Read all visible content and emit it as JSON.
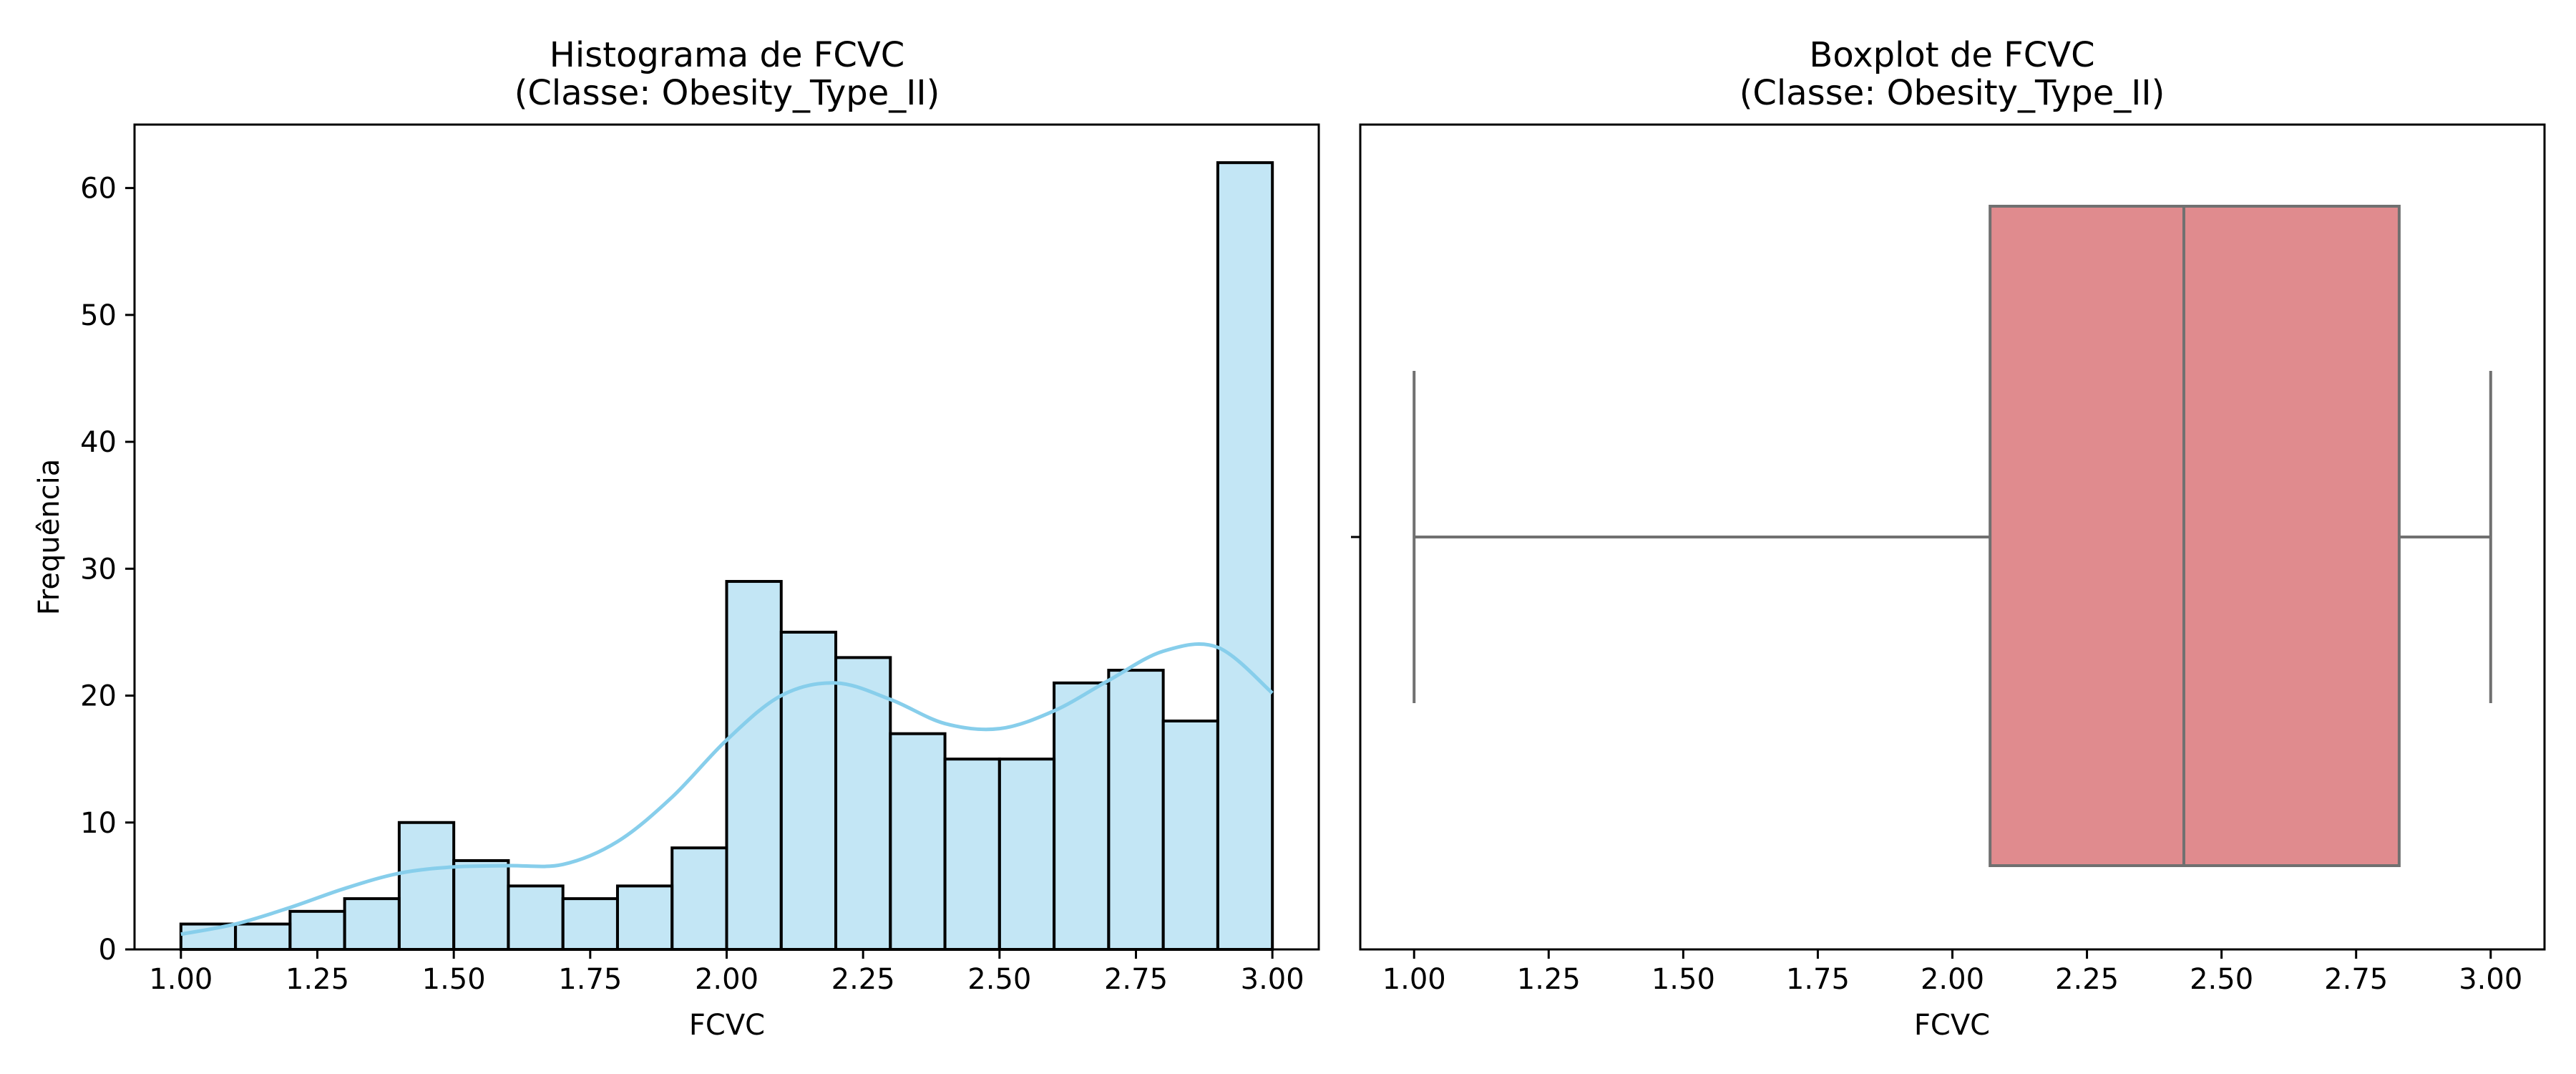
{
  "colors": {
    "hist_fill": "#87ceeb",
    "hist_fill_opacity": 0.5,
    "hist_edge": "#000000",
    "kde_line": "#87ceeb",
    "box_fill": "#e08b8e",
    "box_line": "#707070",
    "axes": "#000000",
    "background": "#ffffff"
  },
  "chart_data": [
    {
      "type": "bar",
      "subtype": "histogram_with_kde",
      "title_line1": "Histograma de FCVC",
      "title_line2": "(Classe: Obesity_Type_II)",
      "xlabel": "FCVC",
      "ylabel": "Frequência",
      "xlim": [
        0.915,
        3.085
      ],
      "ylim": [
        0,
        65
      ],
      "xticks": [
        1.0,
        1.25,
        1.5,
        1.75,
        2.0,
        2.25,
        2.5,
        2.75,
        3.0
      ],
      "xtick_labels": [
        "1.00",
        "1.25",
        "1.50",
        "1.75",
        "2.00",
        "2.25",
        "2.50",
        "2.75",
        "3.00"
      ],
      "yticks": [
        0,
        10,
        20,
        30,
        40,
        50,
        60
      ],
      "ytick_labels": [
        "0",
        "10",
        "20",
        "30",
        "40",
        "50",
        "60"
      ],
      "grid": false,
      "bin_edges": [
        1.0,
        1.1,
        1.2,
        1.3,
        1.4,
        1.5,
        1.6,
        1.7,
        1.8,
        1.9,
        2.0,
        2.1,
        2.2,
        2.3,
        2.4,
        2.5,
        2.6,
        2.7,
        2.8,
        2.9,
        3.0
      ],
      "counts": [
        2,
        2,
        3,
        4,
        10,
        7,
        5,
        4,
        5,
        8,
        29,
        25,
        23,
        17,
        15,
        15,
        21,
        22,
        18,
        62
      ],
      "kde": {
        "x": [
          1.0,
          1.1,
          1.2,
          1.3,
          1.4,
          1.5,
          1.6,
          1.7,
          1.8,
          1.9,
          2.0,
          2.1,
          2.2,
          2.3,
          2.4,
          2.5,
          2.6,
          2.7,
          2.8,
          2.9,
          3.0
        ],
        "y": [
          1.2,
          2.0,
          3.3,
          4.8,
          6.0,
          6.5,
          6.6,
          6.7,
          8.5,
          12.0,
          16.5,
          20.0,
          21.0,
          19.7,
          17.8,
          17.4,
          18.8,
          21.2,
          23.5,
          23.8,
          20.2
        ]
      }
    },
    {
      "type": "box",
      "title_line1": "Boxplot de FCVC",
      "title_line2": "(Classe: Obesity_Type_II)",
      "xlabel": "FCVC",
      "xlim": [
        0.9,
        3.1
      ],
      "xticks": [
        1.0,
        1.25,
        1.5,
        1.75,
        2.0,
        2.25,
        2.5,
        2.75,
        3.0
      ],
      "xtick_labels": [
        "1.00",
        "1.25",
        "1.50",
        "1.75",
        "2.00",
        "2.25",
        "2.50",
        "2.75",
        "3.00"
      ],
      "grid": false,
      "whisker_low": 1.0,
      "q1": 2.07,
      "median": 2.43,
      "q3": 2.83,
      "whisker_high": 3.0
    }
  ]
}
